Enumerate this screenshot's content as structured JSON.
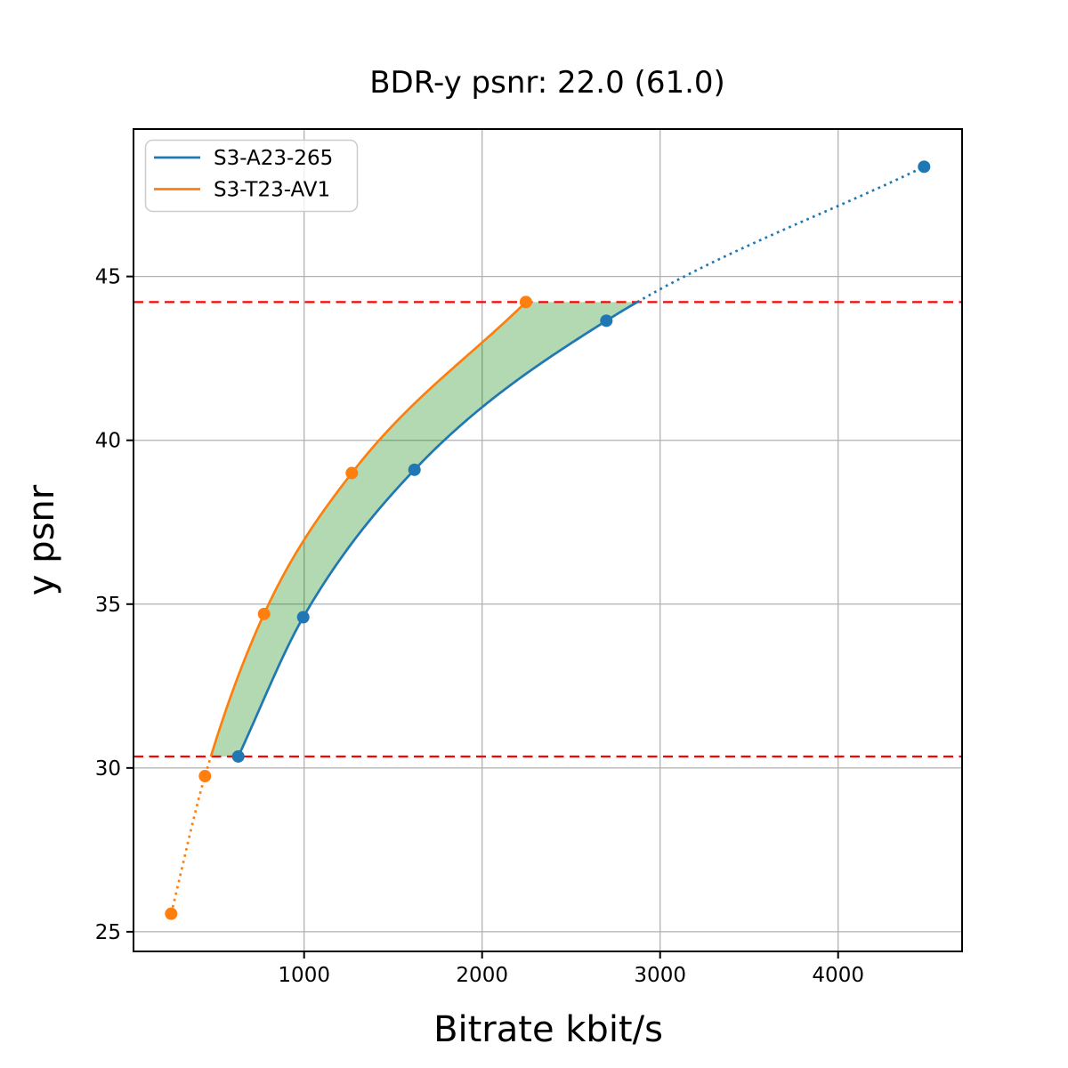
{
  "figure": {
    "background_color": "#ffffff",
    "frame_color": "#000000"
  },
  "chart_data": {
    "type": "line",
    "title": "BDR-y psnr: 22.0 (61.0)",
    "xlabel": "Bitrate kbit/s",
    "ylabel": "y psnr",
    "xlim": [
      41.5,
      4696.5
    ],
    "ylim": [
      24.4,
      49.5
    ],
    "xticks": [
      1000,
      2000,
      3000,
      4000
    ],
    "yticks": [
      25,
      30,
      35,
      40,
      45
    ],
    "grid": true,
    "grid_color": "#b0b0b0",
    "legend_position": "upper left",
    "series": [
      {
        "name": "S3-A23-265",
        "color": "#1f77b4",
        "points": [
          [
            630,
            30.35
          ],
          [
            995,
            34.6
          ],
          [
            1620,
            39.1
          ],
          [
            2698,
            43.65
          ],
          [
            4483,
            48.35
          ]
        ]
      },
      {
        "name": "S3-T23-AV1",
        "color": "#ff7f0e",
        "points": [
          [
            253,
            25.55
          ],
          [
            443,
            29.75
          ],
          [
            775,
            34.7
          ],
          [
            1268,
            39.0
          ],
          [
            2246,
            44.22
          ]
        ]
      }
    ],
    "overlap_lines": {
      "lower": 30.35,
      "upper": 44.22,
      "color": "#ff0000",
      "style": "dashed"
    },
    "fill_between": {
      "color": "#008000",
      "alpha": 0.3
    },
    "style_note": "curves solid inside psnr overlap interval, dotted outside"
  }
}
